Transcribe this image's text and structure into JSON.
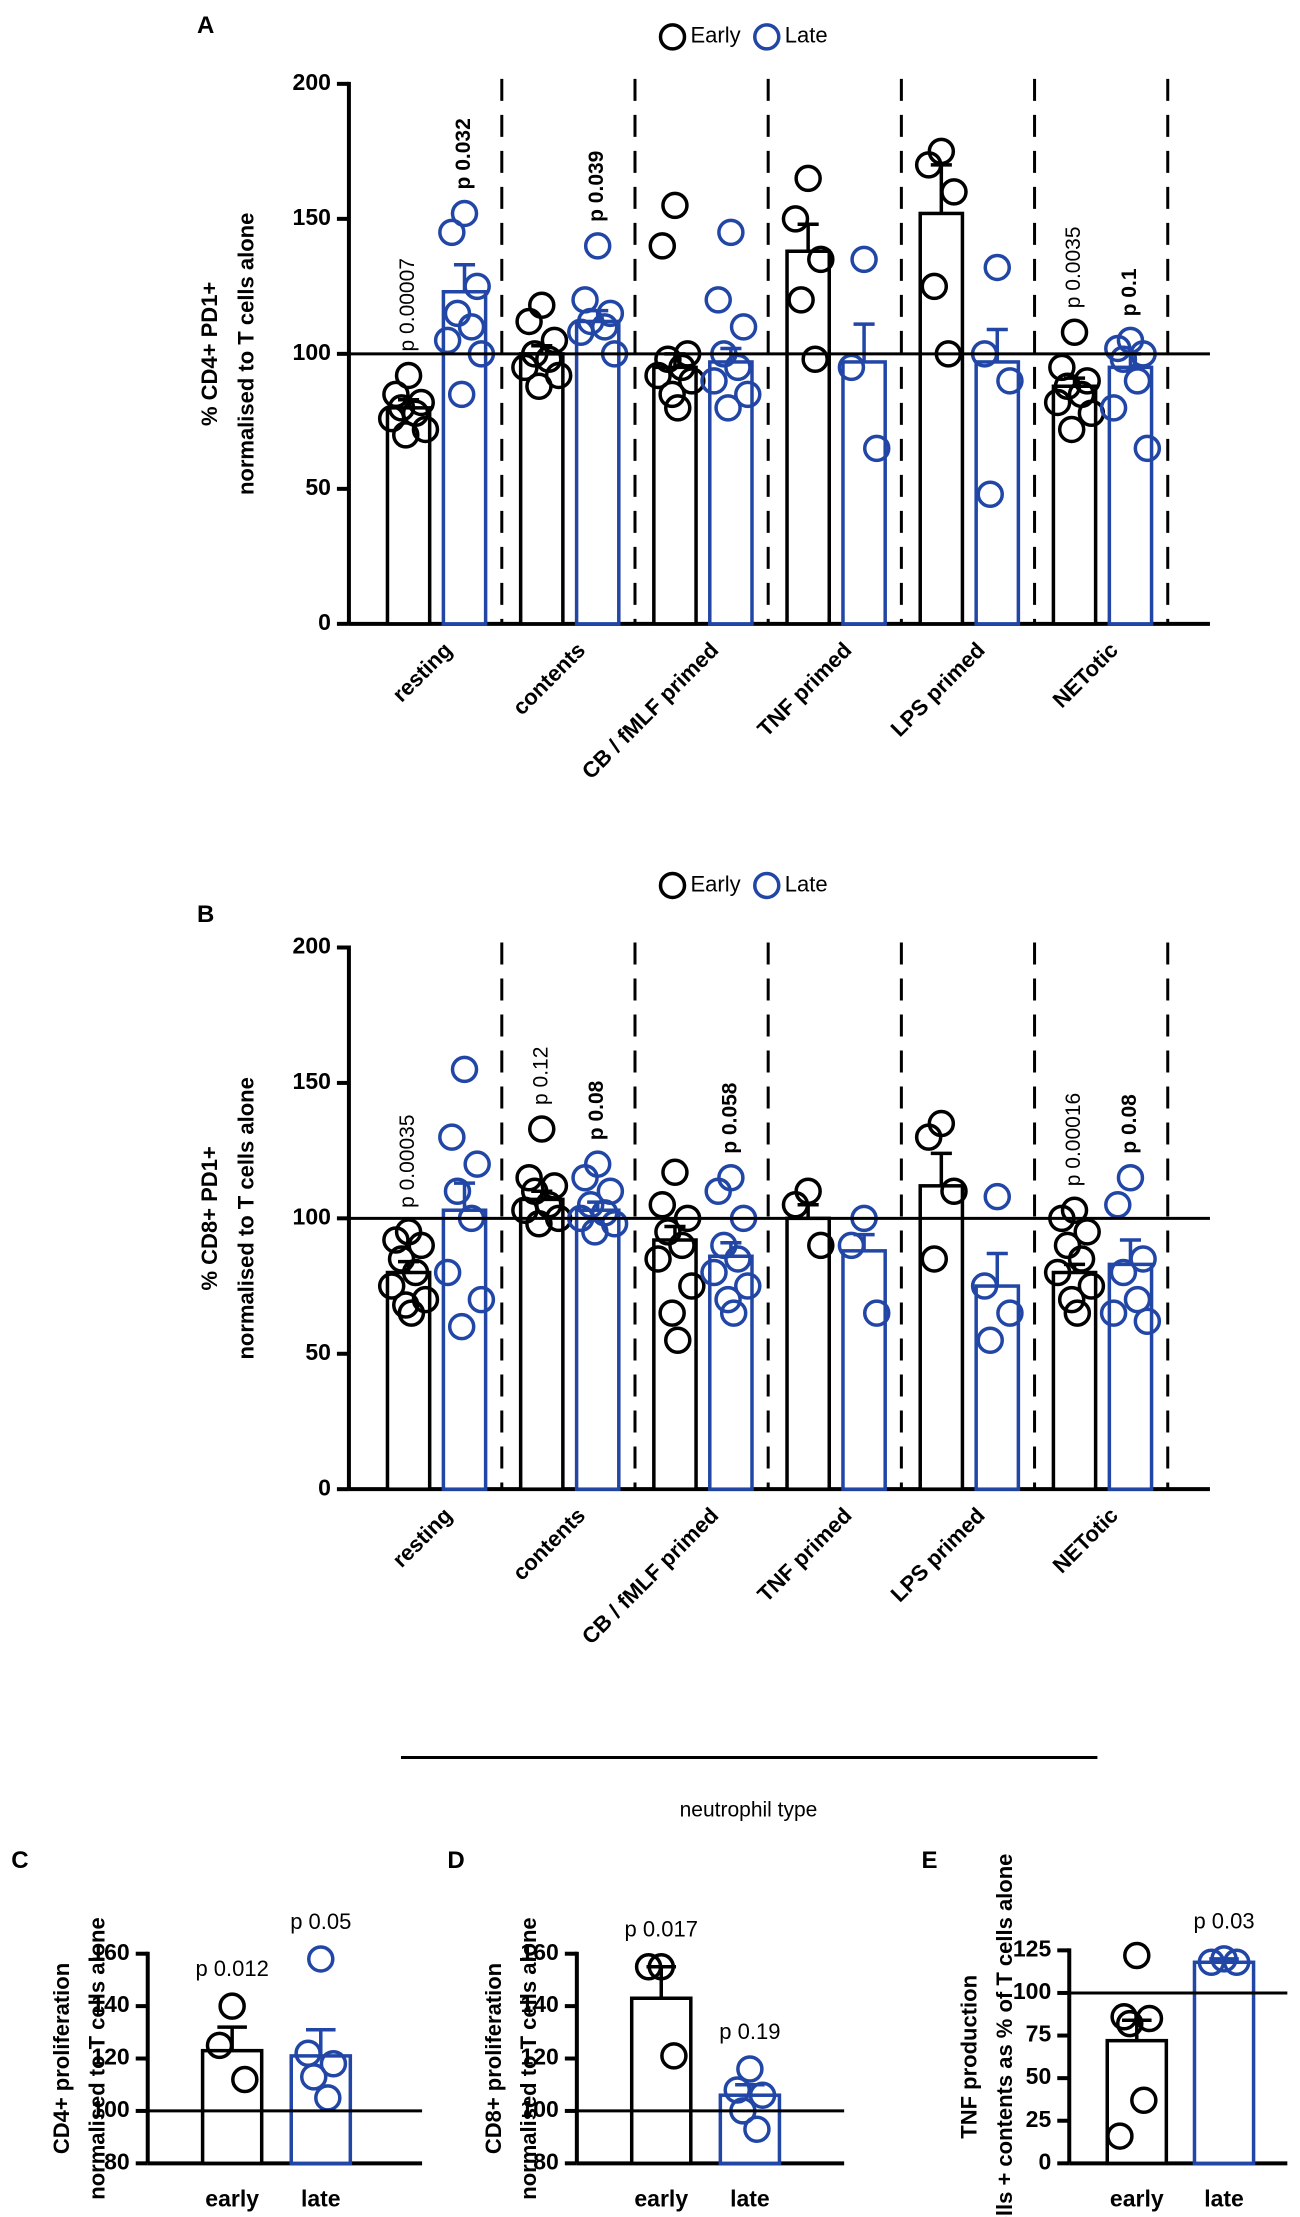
{
  "chart_data": [
    {
      "type": "bar",
      "panel": "A",
      "ylabel": [
        "% CD4+ PD1+",
        "normalised to T cells alone"
      ],
      "ylim": [
        0,
        200
      ],
      "yticks": [
        0,
        50,
        100,
        150,
        200
      ],
      "reference_line": 100,
      "legend": "top",
      "categories": [
        "resting",
        "contents",
        "CB / fMLF primed",
        "TNF primed",
        "LPS primed",
        "NETotic"
      ],
      "series": [
        {
          "name": "Early",
          "color": "#000000",
          "values": [
            80,
            100,
            95,
            138,
            152,
            88
          ],
          "errors": [
            3,
            3,
            5,
            10,
            18,
            3
          ],
          "pvalue_labels": [
            "p 0.00007",
            null,
            null,
            null,
            null,
            "p 0.0035"
          ],
          "points": [
            [
              92,
              85,
              82,
              80,
              78,
              76,
              72,
              70
            ],
            [
              118,
              112,
              105,
              100,
              98,
              95,
              92,
              88
            ],
            [
              155,
              140,
              100,
              98,
              95,
              92,
              90,
              85,
              80
            ],
            [
              165,
              150,
              135,
              120,
              98
            ],
            [
              175,
              170,
              160,
              125,
              100
            ],
            [
              108,
              95,
              90,
              88,
              85,
              82,
              78,
              72
            ]
          ]
        },
        {
          "name": "Late",
          "color": "#2146a6",
          "values": [
            123,
            112,
            97,
            97,
            97,
            95
          ],
          "errors": [
            10,
            4,
            5,
            14,
            12,
            5
          ],
          "pvalue_labels": [
            "p 0.032",
            "p 0.039",
            null,
            null,
            null,
            "p 0.1"
          ],
          "points": [
            [
              152,
              145,
              125,
              115,
              110,
              105,
              100,
              85
            ],
            [
              140,
              120,
              115,
              112,
              110,
              108,
              100
            ],
            [
              145,
              120,
              110,
              100,
              95,
              90,
              85,
              80
            ],
            [
              135,
              95,
              65
            ],
            [
              132,
              100,
              90,
              48
            ],
            [
              105,
              102,
              100,
              98,
              90,
              80,
              65
            ]
          ]
        }
      ]
    },
    {
      "type": "bar",
      "panel": "B",
      "ylabel": [
        "% CD8+ PD1+",
        "normalised to T cells alone"
      ],
      "xlabel": "neutrophil type",
      "ylim": [
        0,
        200
      ],
      "yticks": [
        0,
        50,
        100,
        150,
        200
      ],
      "reference_line": 100,
      "legend": "top",
      "categories": [
        "resting",
        "contents",
        "CB / fMLF primed",
        "TNF primed",
        "LPS primed",
        "NETotic"
      ],
      "series": [
        {
          "name": "Early",
          "color": "#000000",
          "values": [
            80,
            107,
            92,
            100,
            112,
            80
          ],
          "errors": [
            4,
            3,
            5,
            5,
            12,
            3
          ],
          "pvalue_labels": [
            "p 0.00035",
            "p 0.12",
            null,
            null,
            null,
            "p 0.00016"
          ],
          "points": [
            [
              95,
              92,
              90,
              85,
              80,
              75,
              70,
              68,
              65
            ],
            [
              133,
              115,
              112,
              110,
              105,
              103,
              100,
              98
            ],
            [
              117,
              105,
              100,
              95,
              90,
              85,
              75,
              65,
              55
            ],
            [
              110,
              105,
              90
            ],
            [
              135,
              130,
              110,
              85
            ],
            [
              103,
              100,
              95,
              90,
              85,
              80,
              75,
              70,
              65
            ]
          ]
        },
        {
          "name": "Late",
          "color": "#2146a6",
          "values": [
            103,
            103,
            86,
            88,
            75,
            83
          ],
          "errors": [
            10,
            3,
            5,
            6,
            12,
            9
          ],
          "pvalue_labels": [
            null,
            "p 0.08",
            "p 0.058",
            null,
            null,
            "p 0.08"
          ],
          "points": [
            [
              155,
              130,
              120,
              110,
              100,
              80,
              70,
              60
            ],
            [
              120,
              115,
              110,
              105,
              102,
              100,
              98,
              95
            ],
            [
              115,
              110,
              100,
              90,
              85,
              80,
              75,
              70,
              65
            ],
            [
              100,
              90,
              65
            ],
            [
              108,
              75,
              65,
              55
            ],
            [
              115,
              105,
              85,
              80,
              70,
              65,
              62
            ]
          ]
        }
      ]
    },
    {
      "type": "bar",
      "panel": "C",
      "ylabel": [
        "CD4+ proliferation",
        "normalised to T cells alone"
      ],
      "ylim": [
        80,
        160
      ],
      "yticks": [
        80,
        100,
        120,
        140,
        160
      ],
      "reference_line": 100,
      "categories": [
        "early",
        "late"
      ],
      "colors": [
        "#000000",
        "#2146a6"
      ],
      "values": [
        123,
        121
      ],
      "errors": [
        9,
        10
      ],
      "pvalue_labels": [
        "p 0.012",
        "p 0.05"
      ],
      "points": [
        [
          140,
          125,
          112
        ],
        [
          158,
          122,
          118,
          113,
          105
        ]
      ]
    },
    {
      "type": "bar",
      "panel": "D",
      "ylabel": [
        "CD8+ proliferation",
        "normalised to T cells alone"
      ],
      "ylim": [
        80,
        160
      ],
      "yticks": [
        80,
        100,
        120,
        140,
        160
      ],
      "reference_line": 100,
      "categories": [
        "early",
        "late"
      ],
      "colors": [
        "#000000",
        "#2146a6"
      ],
      "values": [
        143,
        106
      ],
      "errors": [
        12,
        4
      ],
      "pvalue_labels": [
        "p 0.017",
        "p 0.19"
      ],
      "points": [
        [
          155,
          155,
          121
        ],
        [
          116,
          108,
          106,
          100,
          93
        ]
      ]
    },
    {
      "type": "bar",
      "panel": "E",
      "ylabel": [
        "TNF production",
        "T cells + contents as % of T cells alone"
      ],
      "ylim": [
        0,
        125
      ],
      "yticks": [
        0,
        25,
        50,
        75,
        100,
        125
      ],
      "reference_line": 100,
      "categories": [
        "early",
        "late"
      ],
      "colors": [
        "#000000",
        "#2146a6"
      ],
      "values": [
        72,
        118
      ],
      "errors": [
        12,
        2
      ],
      "pvalue_labels": [
        null,
        "p 0.03"
      ],
      "points": [
        [
          122,
          86,
          85,
          82,
          37,
          16
        ],
        [
          120,
          118,
          118
        ]
      ]
    }
  ]
}
